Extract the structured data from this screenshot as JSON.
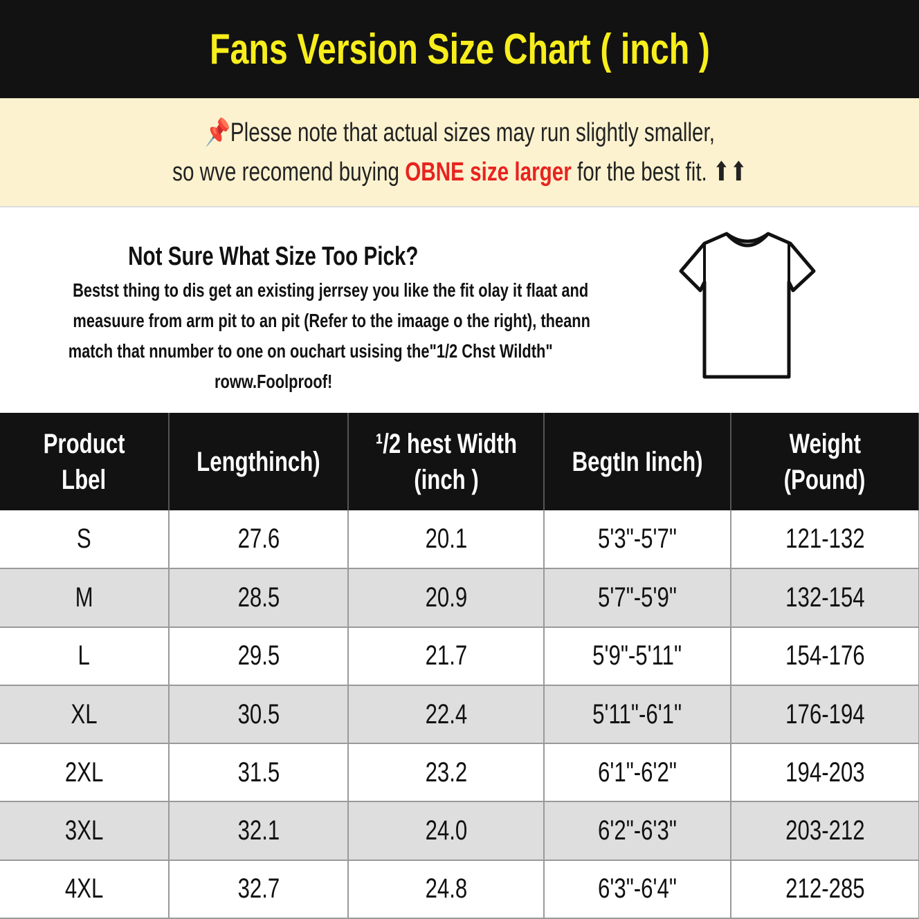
{
  "title": "Fans Version Size Chart ( inch )",
  "note": {
    "icon": "pushpin-icon",
    "line1": "Plesse note that actual sizes may run slightly smaller,",
    "line2_pre": "so wve recomend buying ",
    "line2_highlight": "OBNE size larger",
    "line2_post": " for the best fit. ⬆⬆",
    "highlight_color": "#e8231f"
  },
  "info": {
    "heading": "Not Sure What Size Too Pick?",
    "lines": [
      "Bestst thing to dis get an existing jerrsey you like the fit olay it flaat and",
      "measuure from arm pit to an pit (Refer to the imaage o the right), theann",
      "match that nnumber to one on ouchart usising the\"1/2 Chst Wildth\"",
      "roww.Foolproof!"
    ],
    "image": "tshirt-icon"
  },
  "table": {
    "headers": [
      [
        "Product",
        "Lbel"
      ],
      [
        "Lengthinch)"
      ],
      [
        "¹/2 hest Width",
        "(inch )"
      ],
      [
        "BegtIn Iinch)"
      ],
      [
        "Weight",
        "(Pound)"
      ]
    ],
    "rows": [
      [
        "S",
        "27.6",
        "20.1",
        "5'3\"-5'7\"",
        "121-132"
      ],
      [
        "M",
        "28.5",
        "20.9",
        "5'7\"-5'9\"",
        "132-154"
      ],
      [
        "L",
        "29.5",
        "21.7",
        "5'9\"-5'11\"",
        "154-176"
      ],
      [
        "XL",
        "30.5",
        "22.4",
        "5'11\"-6'1\"",
        "176-194"
      ],
      [
        "2XL",
        "31.5",
        "23.2",
        "6'1\"-6'2\"",
        "194-203"
      ],
      [
        "3XL",
        "32.1",
        "24.0",
        "6'2\"-6'3\"",
        "203-212"
      ],
      [
        "4XL",
        "32.7",
        "24.8",
        "6'3\"-6'4\"",
        "212-285"
      ]
    ]
  }
}
